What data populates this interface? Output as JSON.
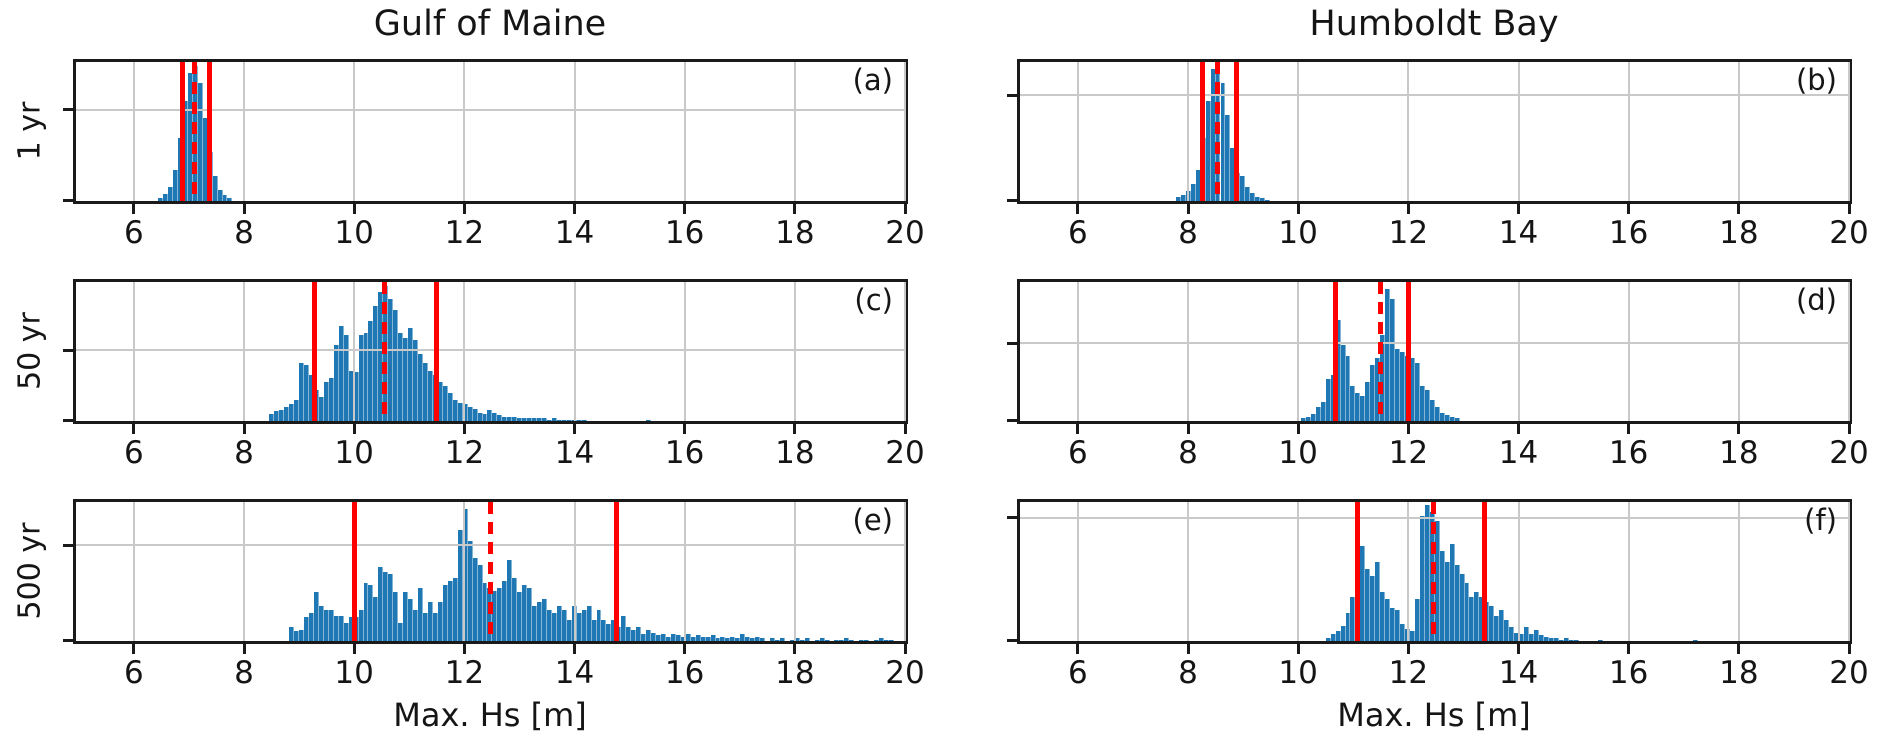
{
  "figure": {
    "columns": [
      {
        "title": "Gulf of Maine"
      },
      {
        "title": "Humboldt Bay"
      }
    ],
    "row_labels": [
      "1 yr",
      "50 yr",
      "500 yr"
    ],
    "xlabel": "Max. Hs [m]",
    "x_ticks": [
      6,
      8,
      10,
      12,
      14,
      16,
      18,
      20
    ],
    "xlim": [
      4.95,
      20
    ],
    "grid": true,
    "colors": {
      "bar": "#1f77b4",
      "interval_line": "#ff0000",
      "grid": "#c9c9c9",
      "axis": "#1a1a1a"
    }
  },
  "chart_data": [
    {
      "type": "bar",
      "panel": "(a)",
      "site": "Gulf of Maine",
      "return_period": "1 yr",
      "xlabel": "Max. Hs [m]",
      "ylabel": "1 yr",
      "bin_start": 6.44,
      "bin_width": 0.09,
      "heights": [
        0.02,
        0.05,
        0.1,
        0.22,
        0.45,
        0.72,
        0.92,
        0.97,
        0.85,
        0.6,
        0.35,
        0.18,
        0.08,
        0.04,
        0.02
      ],
      "lines": {
        "lower": 6.88,
        "median": 7.1,
        "upper": 7.37
      },
      "hgrid_frac": 0.655
    },
    {
      "type": "bar",
      "panel": "(b)",
      "site": "Humboldt Bay",
      "return_period": "1 yr",
      "xlabel": "Max. Hs [m]",
      "ylabel": "1 yr",
      "bin_start": 7.78,
      "bin_width": 0.09,
      "heights": [
        0.03,
        0.04,
        0.07,
        0.12,
        0.22,
        0.45,
        0.72,
        0.95,
        0.92,
        0.85,
        0.62,
        0.38,
        0.2,
        0.18,
        0.1,
        0.06,
        0.03,
        0.02,
        0.01
      ],
      "lines": {
        "lower": 8.27,
        "median": 8.54,
        "upper": 8.88
      },
      "hgrid_frac": 0.76
    },
    {
      "type": "bar",
      "panel": "(c)",
      "site": "Gulf of Maine",
      "return_period": "50 yr",
      "xlabel": "Max. Hs [m]",
      "ylabel": "50 yr",
      "bin_start": 8.46,
      "bin_width": 0.09,
      "heights": [
        0.05,
        0.07,
        0.08,
        0.1,
        0.12,
        0.15,
        0.42,
        0.4,
        0.33,
        0.22,
        0.17,
        0.28,
        0.31,
        0.55,
        0.68,
        0.62,
        0.36,
        0.35,
        0.62,
        0.63,
        0.72,
        0.83,
        0.93,
        0.97,
        0.88,
        0.8,
        0.63,
        0.6,
        0.67,
        0.58,
        0.48,
        0.42,
        0.36,
        0.33,
        0.28,
        0.25,
        0.2,
        0.15,
        0.13,
        0.12,
        0.1,
        0.09,
        0.06,
        0.05,
        0.08,
        0.06,
        0.04,
        0.03,
        0.03,
        0.03,
        0.02,
        0.02,
        0.02,
        0.02,
        0.02,
        0.02,
        0.01,
        0.02,
        0.01,
        0.01,
        0.01,
        0.01,
        0.01,
        0.01,
        0,
        0,
        0,
        0,
        0,
        0,
        0,
        0,
        0,
        0,
        0,
        0,
        0.01,
        0
      ],
      "lines": {
        "lower": 9.28,
        "median": 10.55,
        "upper": 11.49
      },
      "hgrid_frac": 0.51
    },
    {
      "type": "bar",
      "panel": "(d)",
      "site": "Humboldt Bay",
      "return_period": "50 yr",
      "xlabel": "Max. Hs [m]",
      "ylabel": "50 yr",
      "bin_start": 10.05,
      "bin_width": 0.09,
      "heights": [
        0.02,
        0.03,
        0.05,
        0.1,
        0.14,
        0.3,
        0.33,
        0.73,
        0.55,
        0.47,
        0.25,
        0.2,
        0.18,
        0.28,
        0.4,
        0.45,
        0.62,
        0.95,
        0.88,
        0.52,
        0.5,
        0.47,
        0.45,
        0.42,
        0.25,
        0.22,
        0.15,
        0.1,
        0.06,
        0.04,
        0.03,
        0.02
      ],
      "lines": {
        "lower": 10.67,
        "median": 11.49,
        "upper": 12.0
      },
      "hgrid_frac": 0.56
    },
    {
      "type": "bar",
      "panel": "(e)",
      "site": "Gulf of Maine",
      "return_period": "500 yr",
      "xlabel": "Max. Hs [m]",
      "ylabel": "500 yr",
      "bin_start": 8.82,
      "bin_width": 0.09,
      "heights": [
        0.1,
        0.07,
        0.08,
        0.17,
        0.2,
        0.35,
        0.25,
        0.22,
        0.22,
        0.18,
        0.18,
        0.13,
        0.17,
        0.17,
        0.22,
        0.42,
        0.4,
        0.32,
        0.53,
        0.5,
        0.48,
        0.35,
        0.13,
        0.35,
        0.3,
        0.22,
        0.38,
        0.2,
        0.28,
        0.2,
        0.28,
        0.4,
        0.43,
        0.45,
        0.8,
        0.95,
        0.72,
        0.6,
        0.55,
        0.42,
        0.38,
        0.36,
        0.38,
        0.43,
        0.58,
        0.45,
        0.35,
        0.4,
        0.38,
        0.25,
        0.28,
        0.3,
        0.22,
        0.2,
        0.25,
        0.22,
        0.15,
        0.25,
        0.2,
        0.22,
        0.25,
        0.15,
        0.22,
        0.15,
        0.12,
        0.15,
        0.1,
        0.18,
        0.1,
        0.08,
        0.1,
        0.05,
        0.08,
        0.06,
        0.04,
        0.05,
        0.03,
        0.05,
        0.04,
        0.03,
        0.05,
        0.03,
        0.04,
        0.03,
        0.03,
        0.04,
        0.02,
        0.03,
        0.02,
        0.03,
        0.02,
        0.05,
        0.03,
        0.02,
        0.03,
        0.02,
        0,
        0.02,
        0.01,
        0.02,
        0,
        0.01,
        0.02,
        0.01,
        0.02,
        0,
        0.01,
        0.02,
        0.01,
        0,
        0.01,
        0.01,
        0.02,
        0.01,
        0,
        0.01,
        0.01,
        0,
        0.01,
        0.02,
        0.01,
        0.01
      ],
      "lines": {
        "lower": 10.0,
        "median": 12.47,
        "upper": 14.76
      },
      "hgrid_frac": 0.69
    },
    {
      "type": "bar",
      "panel": "(f)",
      "site": "Humboldt Bay",
      "return_period": "500 yr",
      "xlabel": "Max. Hs [m]",
      "ylabel": "500 yr",
      "bin_start": 10.5,
      "bin_width": 0.09,
      "heights": [
        0.02,
        0.05,
        0.07,
        0.11,
        0.2,
        0.32,
        0.48,
        0.68,
        0.52,
        0.47,
        0.57,
        0.35,
        0.3,
        0.24,
        0.22,
        0.12,
        0.09,
        0.07,
        0.3,
        0.9,
        0.98,
        0.93,
        0.86,
        0.65,
        0.57,
        0.7,
        0.55,
        0.48,
        0.42,
        0.32,
        0.35,
        0.32,
        0.28,
        0.25,
        0.18,
        0.22,
        0.15,
        0.1,
        0.06,
        0.05,
        0.1,
        0.05,
        0.08,
        0.04,
        0.03,
        0.02,
        0.02,
        0.01,
        0.02,
        0.01,
        0.01,
        0,
        0,
        0,
        0,
        0.01,
        0,
        0,
        0,
        0,
        0,
        0,
        0,
        0,
        0,
        0,
        0,
        0,
        0,
        0,
        0,
        0,
        0,
        0,
        0.01
      ],
      "lines": {
        "lower": 11.08,
        "median": 12.45,
        "upper": 13.38
      },
      "hgrid_frac": 0.885
    }
  ]
}
